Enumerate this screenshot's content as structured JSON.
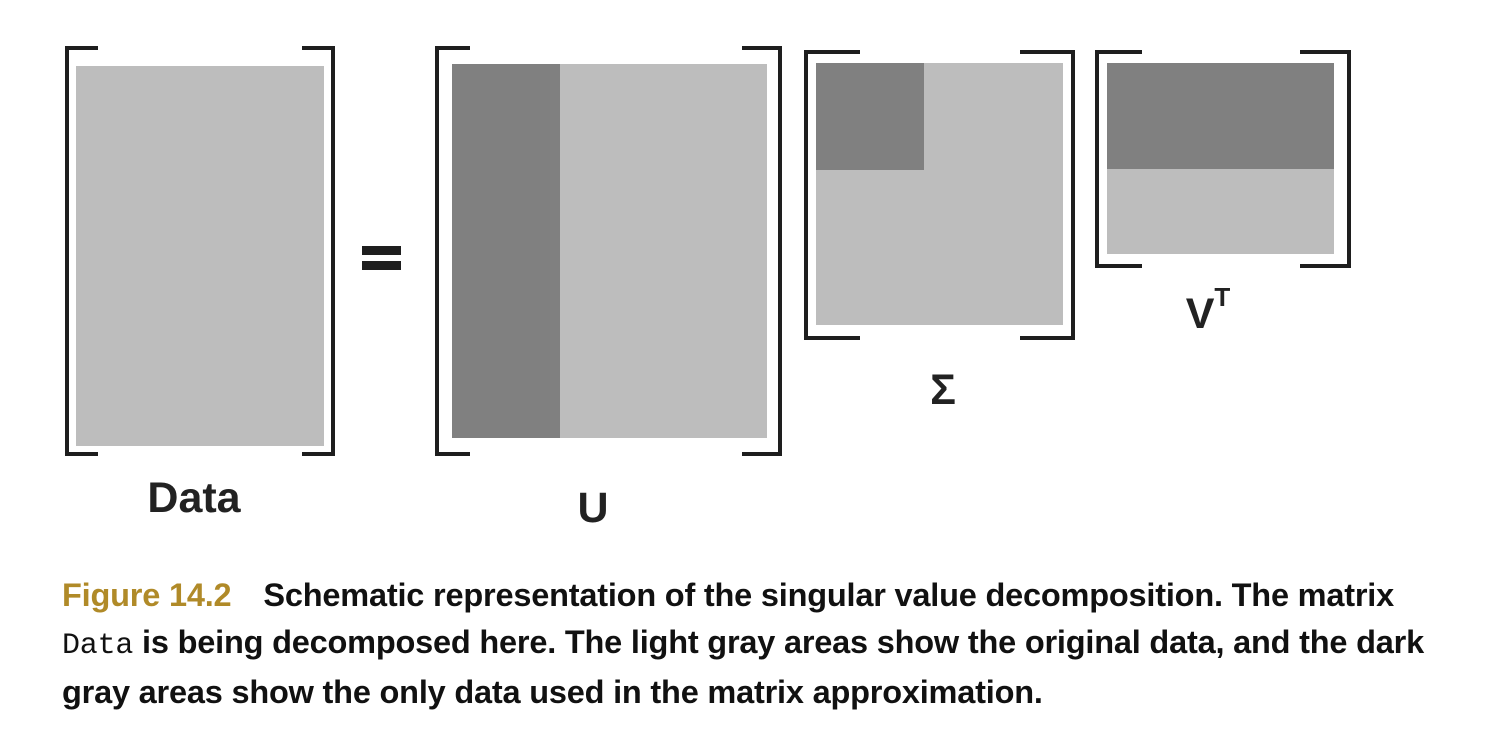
{
  "colors": {
    "light_gray": "#bdbdbd",
    "dark_gray": "#808080",
    "bracket": "#1e1e1e",
    "figure_number": "#b08a28",
    "caption_text": "#111111"
  },
  "diagram": {
    "equals_sign": "=",
    "matrices": {
      "data": {
        "label": "Data"
      },
      "u": {
        "label": "U"
      },
      "sigma": {
        "label": "Σ"
      },
      "vt": {
        "label_base": "V",
        "label_superscript": "T"
      }
    }
  },
  "caption": {
    "figure_number": "Figure 14.2",
    "text_part1": "Schematic representation of the singular value decomposition. The matrix ",
    "code": "Data",
    "text_part2": " is being decomposed here. The light gray areas show the original data, and the dark gray areas show the only data used in the matrix approximation."
  }
}
